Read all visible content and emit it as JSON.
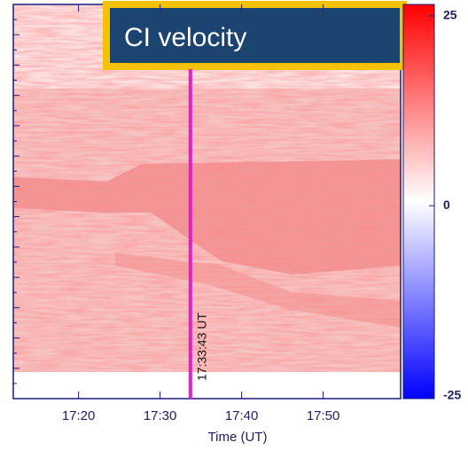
{
  "chart_data": {
    "type": "heatmap",
    "title": "CI velocity",
    "xlabel": "Time (UT)",
    "xlim": [
      1032,
      1079.5
    ],
    "xticks": [
      {
        "value": 1040,
        "label": "17:20"
      },
      {
        "value": 1050,
        "label": "17:30"
      },
      {
        "value": 1060,
        "label": "17:40"
      },
      {
        "value": 1070,
        "label": "17:50"
      }
    ],
    "colorbar": {
      "lim": [
        -25.4,
        26.5
      ],
      "ticks": [
        25,
        0,
        -25
      ],
      "colors": [
        "#0000ff",
        "#ffffff",
        "#ff0000"
      ]
    },
    "marker": {
      "value": 1053.717,
      "label": "17:33:43 UT",
      "color": "#e020c8"
    }
  }
}
